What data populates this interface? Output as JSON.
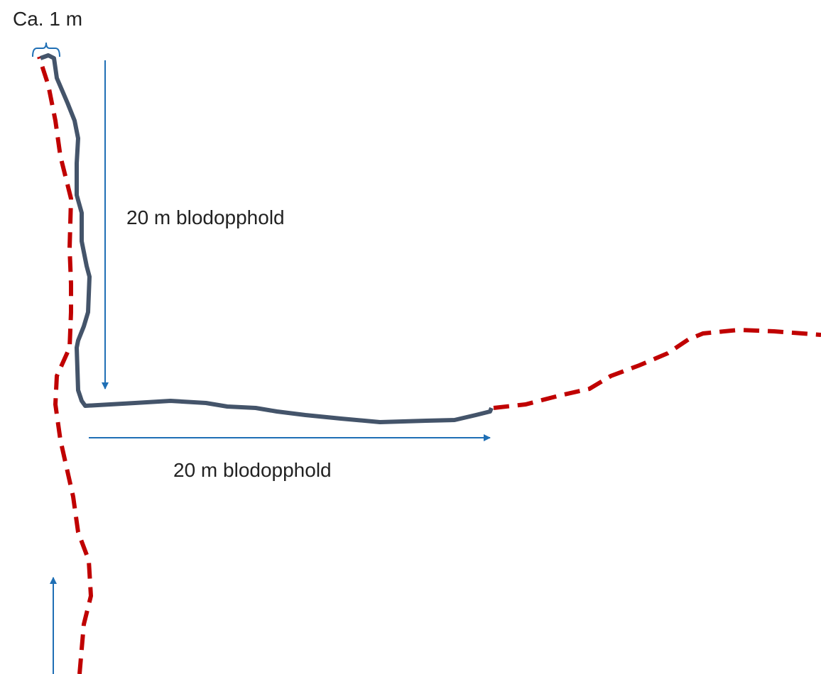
{
  "annotations": {
    "width": "Ca. 1 m",
    "vertical": "20 m blodopphold",
    "horizontal": "20 m blodopphold"
  }
}
